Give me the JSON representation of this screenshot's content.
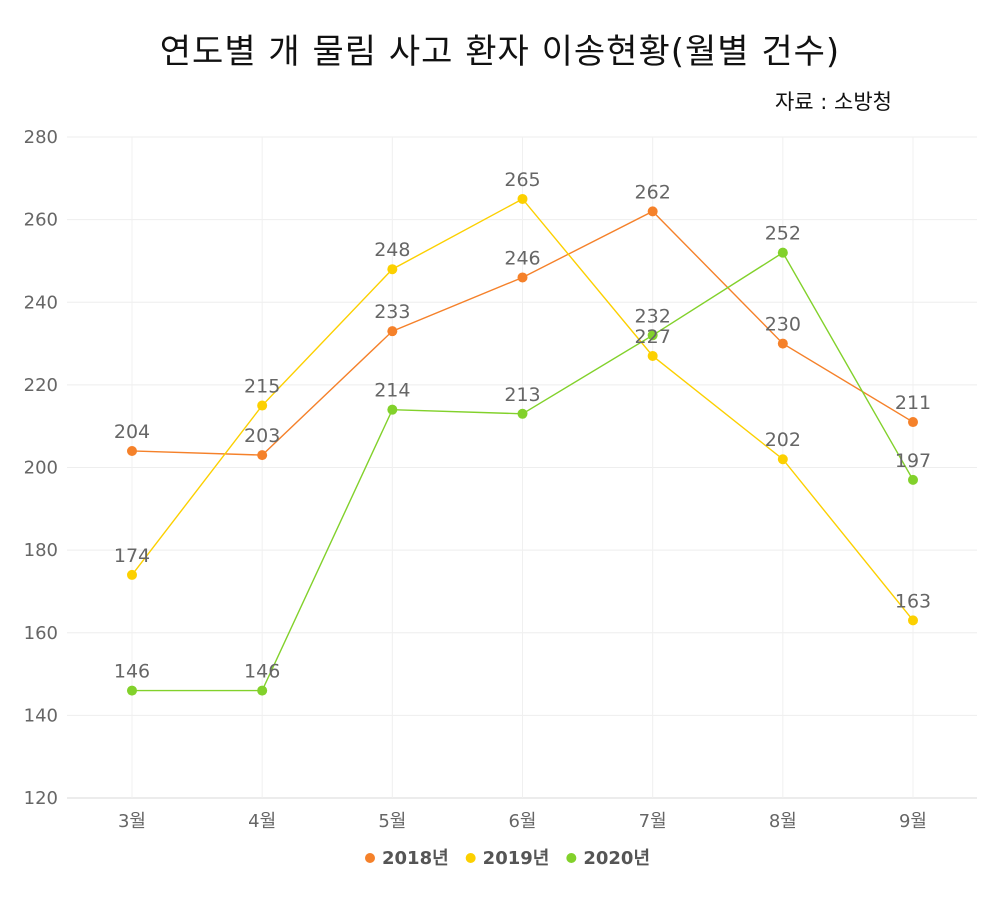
{
  "chart_data": {
    "type": "line",
    "title": "연도별 개 물림 사고 환자 이송현황(월별 건수)",
    "subtitle": "자료 : 소방청",
    "categories": [
      "3월",
      "4월",
      "5월",
      "6월",
      "7월",
      "8월",
      "9월"
    ],
    "ylim": [
      120,
      280
    ],
    "yticks": [
      120,
      140,
      160,
      180,
      200,
      220,
      240,
      260,
      280
    ],
    "grid": true,
    "legend_position": "bottom",
    "series": [
      {
        "name": "2018년",
        "color": "#F5812A",
        "values": [
          204,
          203,
          233,
          246,
          262,
          230,
          211
        ]
      },
      {
        "name": "2019년",
        "color": "#FCD000",
        "values": [
          174,
          215,
          248,
          265,
          227,
          202,
          163
        ]
      },
      {
        "name": "2020년",
        "color": "#82D12B",
        "values": [
          146,
          146,
          214,
          213,
          232,
          252,
          197
        ]
      }
    ]
  }
}
